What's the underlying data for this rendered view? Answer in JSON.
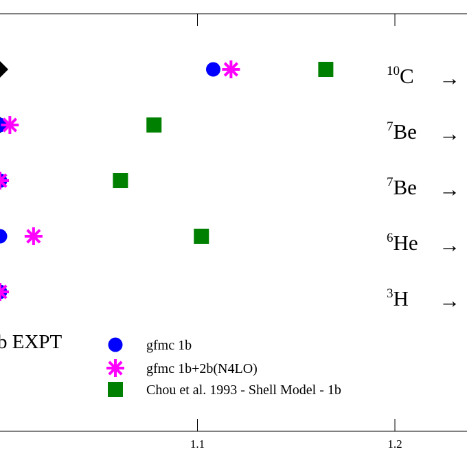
{
  "chart_data": {
    "type": "scatter",
    "xlim": [
      1.0,
      1.235
    ],
    "x_ticks": [
      {
        "value": 1.1,
        "label": "1.1"
      },
      {
        "value": 1.2,
        "label": "1.2"
      }
    ],
    "rows": [
      {
        "id": "c10",
        "sup": "10",
        "label": "C"
      },
      {
        "id": "be7a",
        "sup": "7",
        "label": "Be"
      },
      {
        "id": "be7b",
        "sup": "7",
        "label": "Be"
      },
      {
        "id": "he6",
        "sup": "6",
        "label": "He"
      },
      {
        "id": "h3",
        "sup": "3",
        "label": "H"
      }
    ],
    "arrow_glyph": "→",
    "series": [
      {
        "key": "expt",
        "name": "EXPT",
        "marker": "diamond",
        "color": "#000000",
        "values": [
          1.0,
          1.0,
          1.0,
          null,
          1.0
        ]
      },
      {
        "key": "gfmc_1b",
        "name": "gfmc 1b",
        "marker": "circle",
        "color": "#0000ff",
        "values": [
          1.108,
          1.0,
          1.0,
          1.0,
          1.0
        ]
      },
      {
        "key": "gfmc_1b2b",
        "name": "gfmc 1b+2b(N4LO)",
        "marker": "asterisk",
        "color": "#ff00ff",
        "values": [
          1.117,
          1.005,
          1.0,
          1.017,
          1.0
        ]
      },
      {
        "key": "shell_model",
        "name": "Chou et al. 1993 - Shell Model - 1b",
        "marker": "square",
        "color": "#008000",
        "values": [
          1.165,
          1.078,
          1.061,
          1.102,
          null
        ]
      }
    ],
    "legend_partial_label": "b EXPT",
    "legend": [
      "gfmc 1b",
      "gfmc 1b+2b(N4LO)",
      "Chou et al. 1993 - Shell Model - 1b"
    ]
  }
}
